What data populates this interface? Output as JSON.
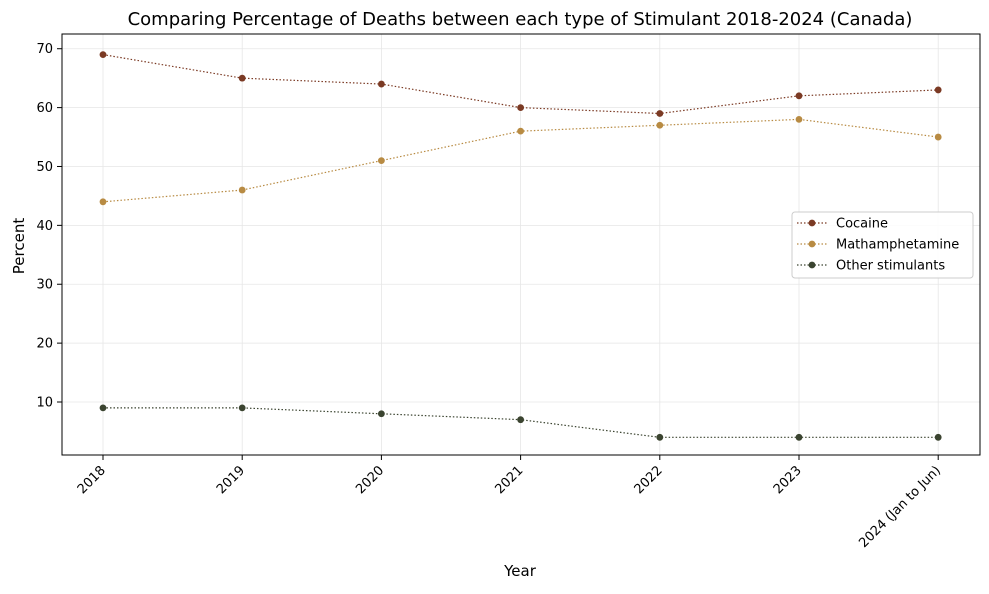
{
  "chart_data": {
    "type": "line",
    "title": "Comparing Percentage of Deaths between each type of Stimulant 2018-2024 (Canada)",
    "xlabel": "Year",
    "ylabel": "Percent",
    "categories": [
      "2018",
      "2019",
      "2020",
      "2021",
      "2022",
      "2023",
      "2024 (Jan to Jun)"
    ],
    "ylim": [
      1,
      72.5
    ],
    "yticks": [
      10,
      20,
      30,
      40,
      50,
      60,
      70
    ],
    "grid": true,
    "legend_position": "center-right",
    "series": [
      {
        "name": "Cocaine",
        "color": "#7b3a24",
        "values": [
          69,
          65,
          64,
          60,
          59,
          62,
          63
        ]
      },
      {
        "name": "Mathamphetamine",
        "color": "#b88b43",
        "values": [
          44,
          46,
          51,
          56,
          57,
          58,
          55
        ]
      },
      {
        "name": "Other stimulants",
        "color": "#3b4430",
        "values": [
          9,
          9,
          8,
          7,
          4,
          4,
          4
        ]
      }
    ]
  }
}
